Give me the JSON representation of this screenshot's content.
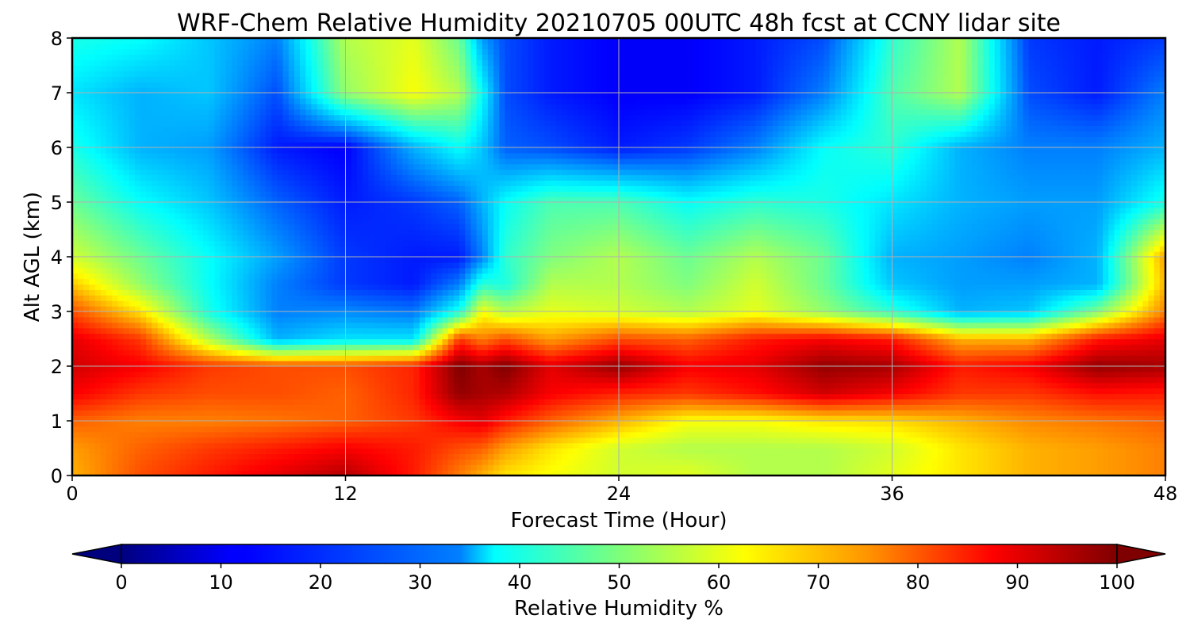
{
  "chart_data": {
    "type": "heatmap",
    "title": "WRF-Chem Relative Humidity 20210705 00UTC 48h fcst at CCNY lidar site",
    "xlabel": "Forecast Time (Hour)",
    "ylabel": "Alt AGL (km)",
    "xlim": [
      0,
      48
    ],
    "ylim": [
      0,
      8
    ],
    "x_ticks": [
      0,
      12,
      24,
      36,
      48
    ],
    "y_ticks": [
      0,
      1,
      2,
      3,
      4,
      5,
      6,
      7,
      8
    ],
    "grid": true,
    "colormap": "jet",
    "colorbar": {
      "label": "Relative Humidity %",
      "range": [
        0,
        100
      ],
      "ticks": [
        0,
        10,
        20,
        30,
        40,
        50,
        60,
        70,
        80,
        90,
        100
      ],
      "extend": "both",
      "placement": "bottom"
    },
    "x": [
      0,
      3,
      6,
      9,
      12,
      15,
      17,
      18,
      19,
      21,
      24,
      27,
      30,
      33,
      36,
      39,
      42,
      45,
      48
    ],
    "y": [
      0,
      0.5,
      1,
      1.5,
      2,
      2.5,
      3,
      3.5,
      4,
      5,
      6,
      7,
      8
    ],
    "z": [
      [
        70,
        80,
        85,
        90,
        95,
        85,
        75,
        70,
        65,
        62,
        58,
        60,
        55,
        55,
        60,
        65,
        70,
        72,
        75
      ],
      [
        72,
        78,
        82,
        85,
        88,
        85,
        80,
        78,
        72,
        65,
        58,
        55,
        55,
        55,
        58,
        65,
        70,
        72,
        75
      ],
      [
        78,
        75,
        75,
        76,
        78,
        82,
        88,
        90,
        85,
        78,
        70,
        62,
        62,
        65,
        66,
        70,
        74,
        76,
        78
      ],
      [
        88,
        82,
        80,
        80,
        78,
        84,
        98,
        96,
        95,
        88,
        84,
        82,
        86,
        92,
        88,
        82,
        82,
        86,
        85
      ],
      [
        92,
        88,
        82,
        80,
        80,
        84,
        100,
        96,
        100,
        90,
        98,
        88,
        90,
        98,
        96,
        85,
        88,
        98,
        96
      ],
      [
        90,
        82,
        55,
        30,
        35,
        35,
        82,
        75,
        80,
        72,
        80,
        78,
        85,
        88,
        85,
        70,
        70,
        85,
        90
      ],
      [
        80,
        65,
        40,
        25,
        26,
        24,
        40,
        62,
        55,
        60,
        58,
        55,
        60,
        52,
        42,
        30,
        32,
        50,
        75
      ],
      [
        68,
        52,
        38,
        25,
        18,
        15,
        25,
        42,
        40,
        55,
        55,
        50,
        58,
        48,
        32,
        28,
        28,
        30,
        70
      ],
      [
        58,
        48,
        38,
        28,
        18,
        15,
        15,
        25,
        42,
        50,
        55,
        48,
        55,
        48,
        30,
        28,
        25,
        30,
        72
      ],
      [
        48,
        38,
        32,
        22,
        15,
        18,
        22,
        30,
        38,
        45,
        45,
        38,
        42,
        40,
        35,
        30,
        28,
        28,
        40
      ],
      [
        40,
        30,
        28,
        15,
        12,
        30,
        38,
        32,
        22,
        20,
        15,
        18,
        25,
        38,
        42,
        30,
        25,
        25,
        30
      ],
      [
        35,
        30,
        32,
        20,
        52,
        62,
        55,
        38,
        20,
        15,
        12,
        12,
        15,
        25,
        45,
        55,
        20,
        15,
        25
      ],
      [
        40,
        38,
        32,
        25,
        55,
        60,
        48,
        28,
        20,
        15,
        12,
        12,
        15,
        20,
        42,
        55,
        18,
        15,
        18
      ]
    ]
  }
}
